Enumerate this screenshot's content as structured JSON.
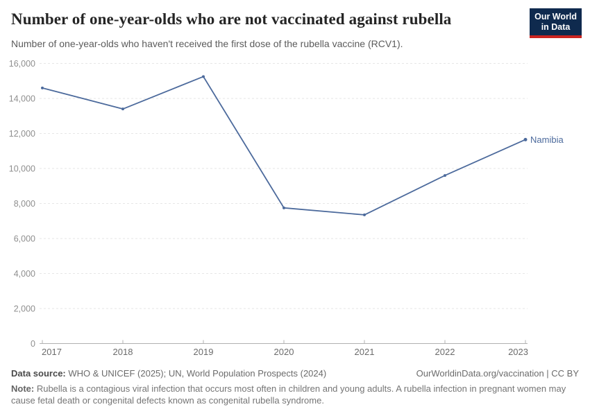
{
  "header": {
    "title": "Number of one-year-olds who are not vaccinated against rubella",
    "subtitle": "Number of one-year-olds who haven't received the first dose of the rubella vaccine (RCV1).",
    "logo": {
      "line1": "Our World",
      "line2": "in Data"
    }
  },
  "chart_data": {
    "type": "line",
    "title": "Number of one-year-olds who are not vaccinated against rubella",
    "x": [
      2017,
      2018,
      2019,
      2020,
      2021,
      2022,
      2023
    ],
    "x_tick_labels": [
      "2017",
      "2018",
      "2019",
      "2020",
      "2021",
      "2022",
      "2023"
    ],
    "series": [
      {
        "name": "Namibia",
        "color": "#4c6a9c",
        "values": [
          14600,
          13400,
          15250,
          7750,
          7350,
          9600,
          11650
        ]
      }
    ],
    "xlabel": "",
    "ylabel": "",
    "ylim": [
      0,
      16000
    ],
    "y_ticks": [
      0,
      2000,
      4000,
      6000,
      8000,
      10000,
      12000,
      14000,
      16000
    ],
    "grid": "horizontal-dashed",
    "legend_position": "end-of-line-label"
  },
  "footer": {
    "datasource_label": "Data source:",
    "datasource_text": " WHO & UNICEF (2025); UN, World Population Prospects (2024)",
    "license_text": "OurWorldinData.org/vaccination | CC BY",
    "note_label": "Note:",
    "note_text": " Rubella is a contagious viral infection that occurs most often in children and young adults. A rubella infection in pregnant women may cause fetal death or congenital defects known as congenital rubella syndrome."
  },
  "colors": {
    "series_line": "#4c6a9c",
    "logo_bg": "#0f2a4e",
    "logo_accent": "#cb2420",
    "grid_line": "#e6e6e6",
    "axis_line": "#b0b0b0",
    "y_tick_text": "#8f8f8f",
    "x_tick_text": "#6b6b6b",
    "title_text": "#252525",
    "subtitle_text": "#5b5b5b"
  }
}
